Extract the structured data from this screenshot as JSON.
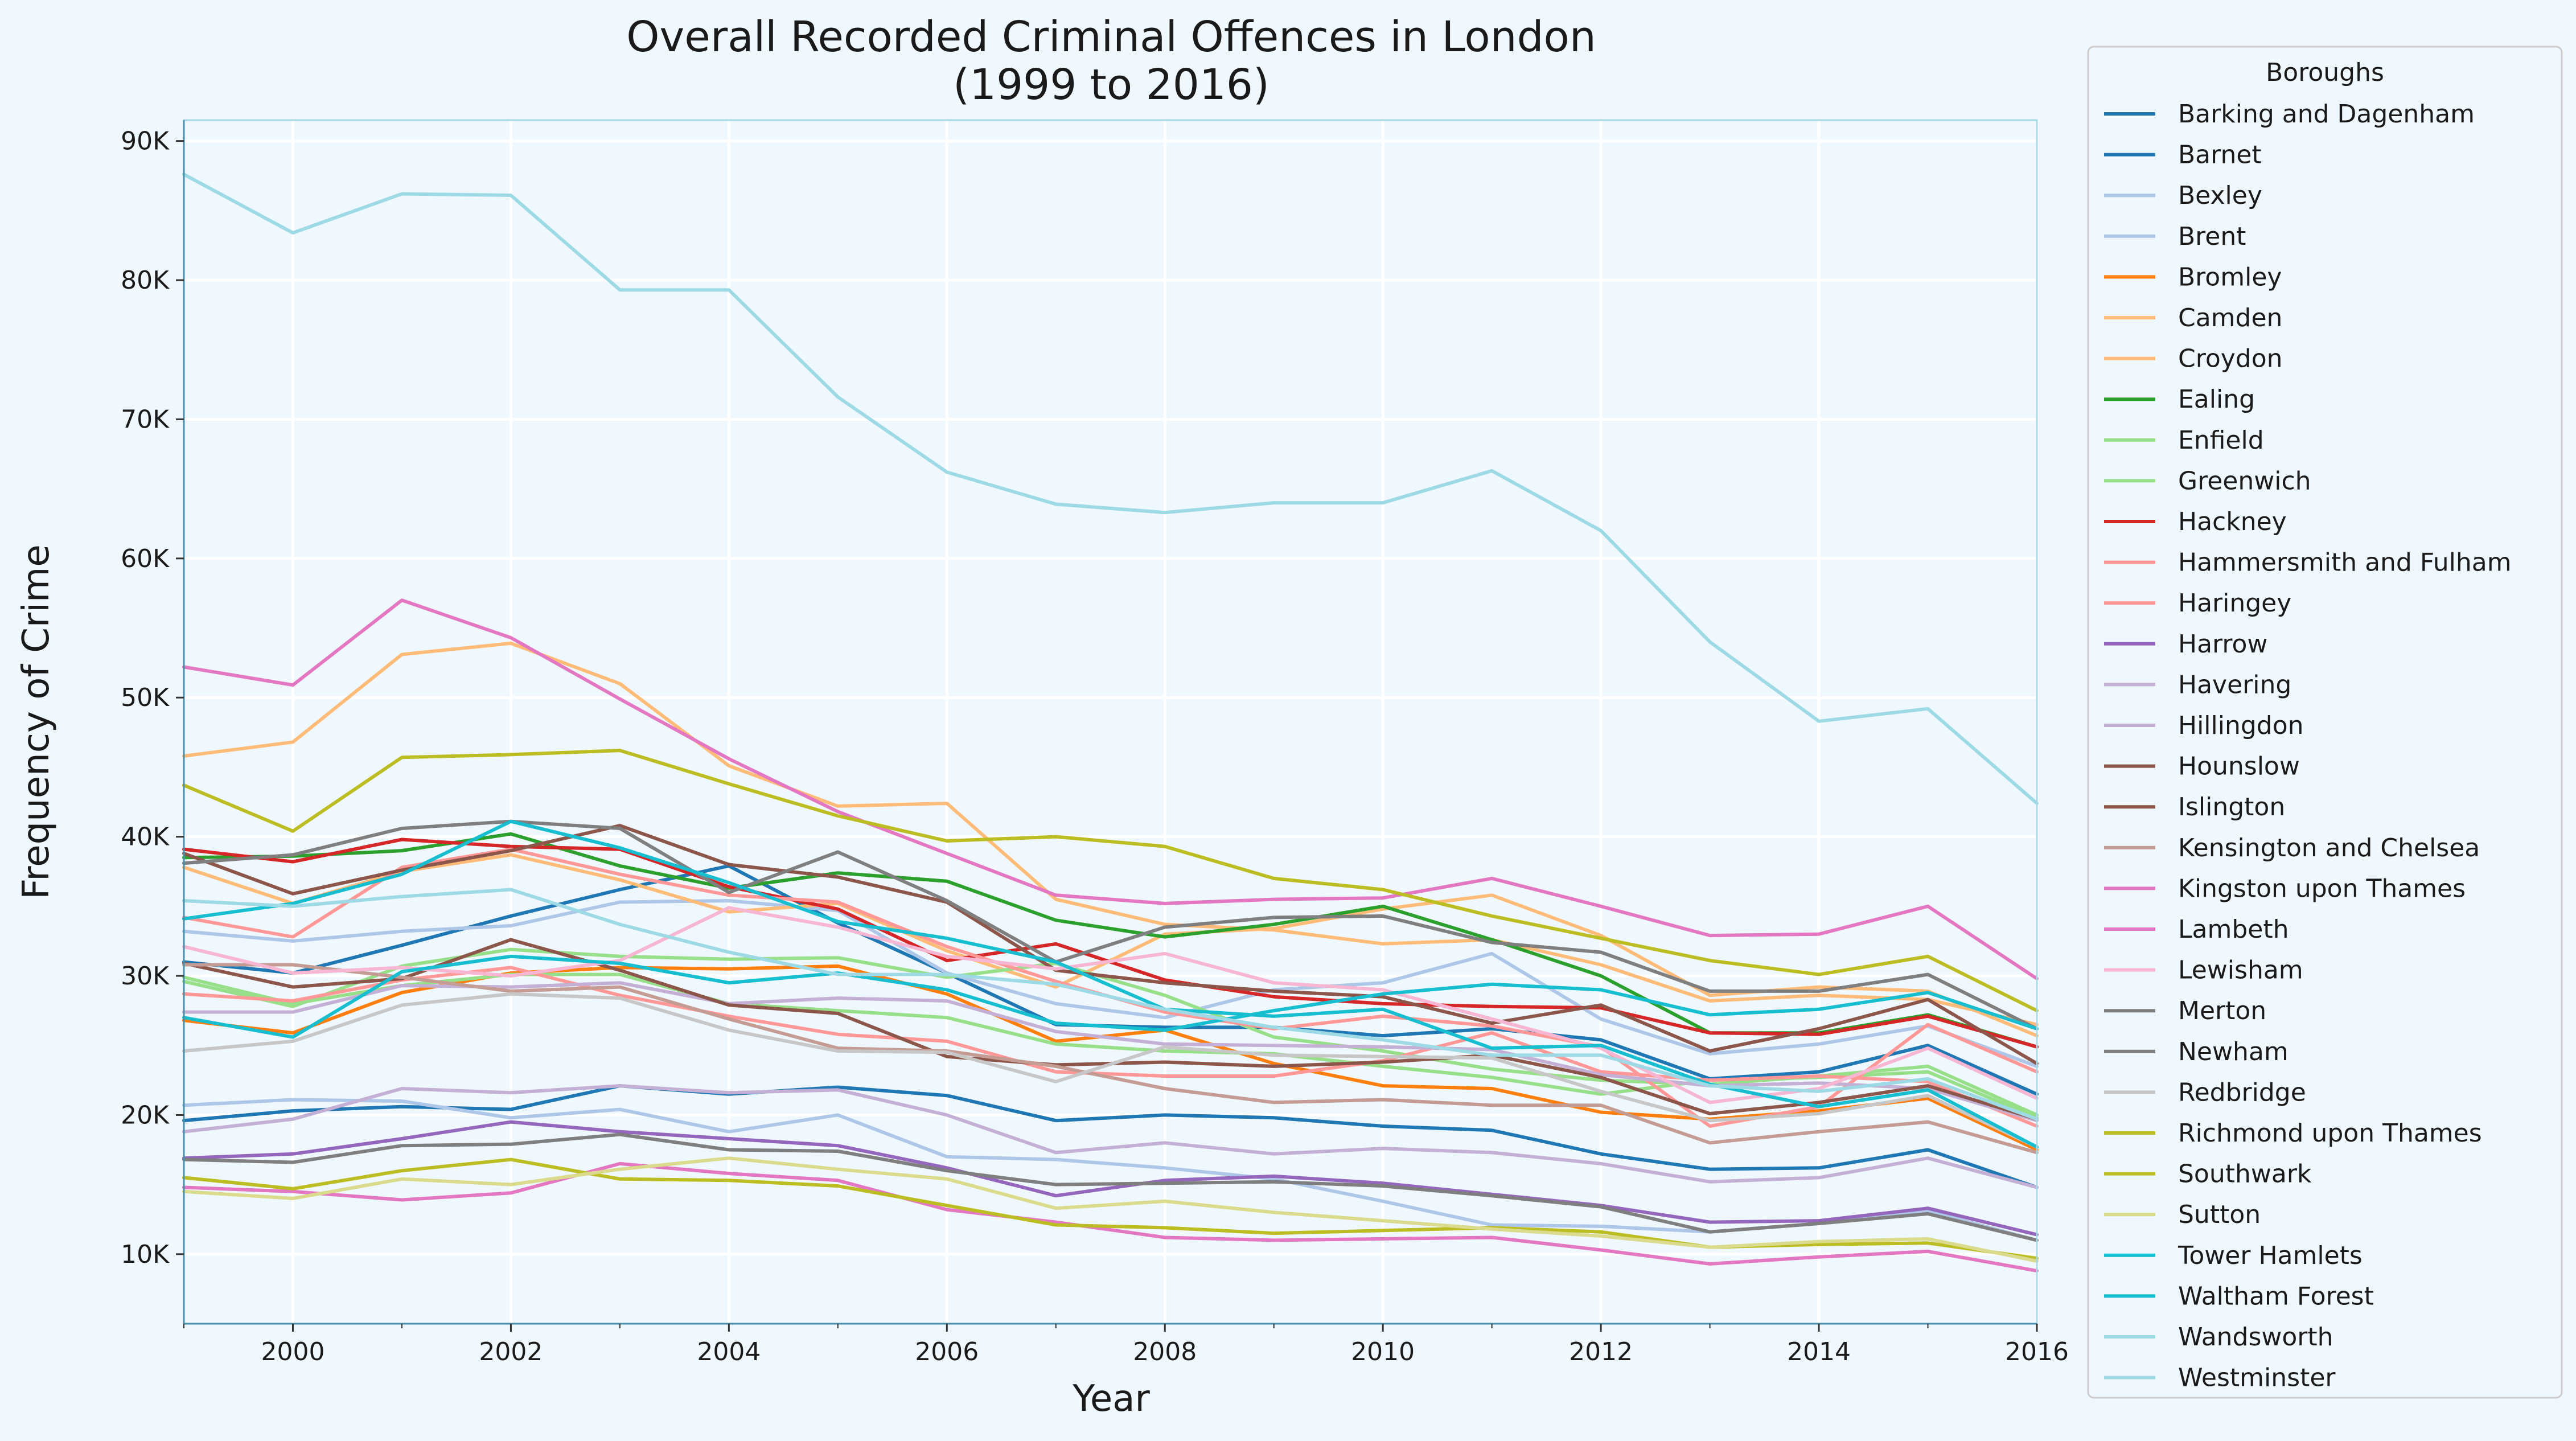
{
  "chart_data": {
    "type": "line",
    "title_lines": [
      "Overall Recorded Criminal Offences in London",
      "(1999 to 2016)"
    ],
    "xlabel": "Year",
    "ylabel": "Frequency of Crime",
    "xlim": [
      1999,
      2016
    ],
    "ylim": [
      5000,
      91500
    ],
    "x_ticks": [
      2000,
      2002,
      2004,
      2006,
      2008,
      2010,
      2012,
      2014,
      2016
    ],
    "x_tick_labels": [
      "2000",
      "2002",
      "2004",
      "2006",
      "2008",
      "2010",
      "2012",
      "2014",
      "2016"
    ],
    "y_ticks": [
      10000,
      20000,
      30000,
      40000,
      50000,
      60000,
      70000,
      80000,
      90000
    ],
    "y_tick_labels": [
      "10K",
      "20K",
      "30K",
      "40K",
      "50K",
      "60K",
      "70K",
      "80K",
      "90K"
    ],
    "grid": true,
    "legend_title": "Boroughs",
    "legend_position": "outside-right",
    "x": [
      1999,
      2000,
      2001,
      2002,
      2003,
      2004,
      2005,
      2006,
      2007,
      2008,
      2009,
      2010,
      2011,
      2012,
      2013,
      2014,
      2015,
      2016
    ],
    "series": [
      {
        "name": "Barking and Dagenham",
        "color": "#1f77b4",
        "values": [
          19600,
          20300,
          20600,
          20400,
          22100,
          21500,
          22000,
          21400,
          19600,
          20000,
          19800,
          19200,
          18900,
          17200,
          16100,
          16200,
          17500,
          14800
        ]
      },
      {
        "name": "Barnet",
        "color": "#1f77b4",
        "values": [
          31000,
          30200,
          32200,
          34300,
          36200,
          37900,
          33800,
          30200,
          26500,
          26300,
          26300,
          25700,
          26200,
          25400,
          22600,
          23100,
          25000,
          21500
        ]
      },
      {
        "name": "Bexley",
        "color": "#aec7e8",
        "values": [
          20700,
          21100,
          21000,
          19800,
          20400,
          18800,
          20000,
          17000,
          16800,
          16200,
          15400,
          13800,
          12100,
          12000,
          11600,
          12200,
          13100,
          11000
        ]
      },
      {
        "name": "Brent",
        "color": "#aec7e8",
        "values": [
          33200,
          32500,
          33200,
          33600,
          35300,
          35400,
          34700,
          30200,
          28000,
          27000,
          29000,
          29500,
          31600,
          26900,
          24400,
          25100,
          26400,
          23500
        ]
      },
      {
        "name": "Bromley",
        "color": "#ff7f0e",
        "values": [
          26800,
          25900,
          28800,
          30200,
          30600,
          30500,
          30700,
          28700,
          25300,
          26100,
          23700,
          22100,
          21900,
          20200,
          19700,
          20300,
          21200,
          17500
        ]
      },
      {
        "name": "Camden",
        "color": "#ffbb78",
        "values": [
          45800,
          46800,
          53100,
          53900,
          51000,
          45100,
          42200,
          42400,
          35500,
          33700,
          33300,
          32300,
          32600,
          30800,
          28200,
          28600,
          28300,
          26500
        ]
      },
      {
        "name": "Croydon",
        "color": "#ffbb78",
        "values": [
          37800,
          35200,
          37500,
          38700,
          36900,
          34600,
          35200,
          31800,
          29200,
          33000,
          33400,
          34800,
          35800,
          32900,
          28600,
          29200,
          28900,
          25700
        ]
      },
      {
        "name": "Ealing",
        "color": "#2ca02c",
        "values": [
          38500,
          38600,
          39000,
          40200,
          37900,
          36300,
          37400,
          36800,
          34000,
          32800,
          33700,
          35000,
          32600,
          30000,
          25900,
          25900,
          27200,
          24900
        ]
      },
      {
        "name": "Enfield",
        "color": "#98df8a",
        "values": [
          29900,
          28000,
          29300,
          30100,
          30100,
          28000,
          27500,
          27000,
          25100,
          24600,
          24400,
          23500,
          22700,
          21500,
          22500,
          22700,
          23100,
          19800
        ]
      },
      {
        "name": "Greenwich",
        "color": "#98df8a",
        "values": [
          29600,
          27800,
          30700,
          31900,
          31400,
          31200,
          31300,
          29900,
          30900,
          28600,
          25600,
          24600,
          23300,
          22500,
          22200,
          22800,
          23500,
          20000
        ]
      },
      {
        "name": "Hackney",
        "color": "#d62728",
        "values": [
          39100,
          38200,
          39800,
          39300,
          39100,
          36400,
          34800,
          31100,
          32300,
          29700,
          28500,
          28000,
          27800,
          27700,
          25900,
          25800,
          27100,
          24900
        ]
      },
      {
        "name": "Hammersmith and Fulham",
        "color": "#ff9896",
        "values": [
          28700,
          28200,
          29700,
          30600,
          28600,
          27100,
          25800,
          25300,
          23100,
          22800,
          22800,
          23900,
          25900,
          23100,
          22500,
          22800,
          22400,
          19200
        ]
      },
      {
        "name": "Haringey",
        "color": "#ff9896",
        "values": [
          34200,
          32800,
          37800,
          39100,
          37300,
          35800,
          35300,
          32100,
          29600,
          27400,
          26200,
          27100,
          26400,
          24900,
          19200,
          20600,
          26500,
          23100
        ]
      },
      {
        "name": "Harrow",
        "color": "#9467bd",
        "values": [
          16900,
          17200,
          18300,
          19500,
          18800,
          18300,
          17800,
          16200,
          14200,
          15300,
          15600,
          15100,
          14300,
          13500,
          12300,
          12400,
          13300,
          11400
        ]
      },
      {
        "name": "Havering",
        "color": "#c5b0d5",
        "values": [
          18800,
          19700,
          21900,
          21600,
          22100,
          21600,
          21800,
          20000,
          17300,
          18000,
          17200,
          17600,
          17300,
          16500,
          15200,
          15500,
          16900,
          14800
        ]
      },
      {
        "name": "Hillingdon",
        "color": "#c5b0d5",
        "values": [
          27400,
          27400,
          29300,
          29200,
          29500,
          28000,
          28400,
          28200,
          26000,
          25100,
          25000,
          24900,
          24700,
          22900,
          22100,
          22300,
          21900,
          19600
        ]
      },
      {
        "name": "Hounslow",
        "color": "#8c564b",
        "values": [
          30900,
          29200,
          29800,
          32600,
          30400,
          27900,
          27300,
          24200,
          23600,
          23800,
          23500,
          23800,
          24300,
          22700,
          20100,
          20900,
          22100,
          19700
        ]
      },
      {
        "name": "Islington",
        "color": "#8c564b",
        "values": [
          38800,
          35900,
          37600,
          39000,
          40800,
          38000,
          37100,
          35300,
          30400,
          29500,
          28900,
          28500,
          26600,
          27900,
          24600,
          26200,
          28300,
          23700
        ]
      },
      {
        "name": "Kensington and Chelsea",
        "color": "#c49c94",
        "values": [
          30800,
          30800,
          29900,
          28900,
          29200,
          26900,
          24800,
          24600,
          23500,
          21900,
          20900,
          21100,
          20700,
          20700,
          18000,
          18800,
          19500,
          17300
        ]
      },
      {
        "name": "Kingston upon Thames",
        "color": "#e377c2",
        "values": [
          14800,
          14500,
          13900,
          14400,
          16500,
          15800,
          15300,
          13200,
          12300,
          11200,
          11000,
          11100,
          11200,
          10300,
          9300,
          9800,
          10200,
          8800
        ]
      },
      {
        "name": "Lambeth",
        "color": "#e377c2",
        "values": [
          52200,
          50900,
          57000,
          54300,
          49900,
          45600,
          41800,
          38800,
          35800,
          35200,
          35500,
          35600,
          37000,
          35000,
          32900,
          33000,
          35000,
          29800
        ]
      },
      {
        "name": "Lewisham",
        "color": "#f7b6d2",
        "values": [
          32100,
          30200,
          30600,
          30000,
          31100,
          34900,
          33500,
          31400,
          30500,
          31600,
          29500,
          29000,
          26900,
          24800,
          20900,
          21900,
          24800,
          21200
        ]
      },
      {
        "name": "Merton",
        "color": "#7f7f7f",
        "values": [
          16800,
          16600,
          17800,
          17900,
          18600,
          17500,
          17400,
          16000,
          15000,
          15100,
          15200,
          14900,
          14200,
          13400,
          11600,
          12200,
          12900,
          11000
        ]
      },
      {
        "name": "Newham",
        "color": "#7f7f7f",
        "values": [
          38100,
          38700,
          40600,
          41100,
          40600,
          36000,
          38900,
          35400,
          31000,
          33500,
          34200,
          34300,
          32400,
          31700,
          28900,
          28900,
          30100,
          26200
        ]
      },
      {
        "name": "Redbridge",
        "color": "#c7c7c7",
        "values": [
          24600,
          25300,
          27900,
          28700,
          28400,
          26100,
          24600,
          24500,
          22400,
          24900,
          24300,
          24200,
          24100,
          21700,
          19600,
          20100,
          21400,
          17700
        ]
      },
      {
        "name": "Richmond upon Thames",
        "color": "#bcbd22",
        "values": [
          15500,
          14700,
          16000,
          16800,
          15400,
          15300,
          14900,
          13500,
          12100,
          11900,
          11500,
          11700,
          11900,
          11600,
          10500,
          10700,
          10800,
          9700
        ]
      },
      {
        "name": "Southwark",
        "color": "#bcbd22",
        "values": [
          43700,
          40400,
          45700,
          45900,
          46200,
          43800,
          41500,
          39700,
          40000,
          39300,
          37000,
          36200,
          34300,
          32700,
          31100,
          30100,
          31400,
          27500
        ]
      },
      {
        "name": "Sutton",
        "color": "#dbdb8d",
        "values": [
          14500,
          14000,
          15400,
          15000,
          16100,
          16900,
          16100,
          15400,
          13300,
          13800,
          13000,
          12400,
          11800,
          11300,
          10500,
          10900,
          11100,
          9500
        ]
      },
      {
        "name": "Tower Hamlets",
        "color": "#17becf",
        "values": [
          34100,
          35200,
          37300,
          41100,
          39200,
          36700,
          33900,
          32700,
          31000,
          27600,
          27100,
          27600,
          24800,
          25000,
          22200,
          20600,
          21800,
          17700
        ]
      },
      {
        "name": "Waltham Forest",
        "color": "#17becf",
        "values": [
          27000,
          25600,
          30300,
          31400,
          30900,
          29500,
          30200,
          29000,
          26600,
          26100,
          27500,
          28700,
          29400,
          29000,
          27200,
          27600,
          28800,
          26200
        ]
      },
      {
        "name": "Wandsworth",
        "color": "#9edae5",
        "values": [
          35400,
          35000,
          35700,
          36200,
          33700,
          31700,
          30100,
          30100,
          29400,
          27600,
          26300,
          25400,
          24300,
          24300,
          22100,
          21700,
          22600,
          19700
        ]
      },
      {
        "name": "Westminster",
        "color": "#9edae5",
        "values": [
          87600,
          83400,
          86200,
          86100,
          79300,
          79300,
          71600,
          66200,
          63900,
          63300,
          64000,
          64000,
          66300,
          62000,
          54000,
          48300,
          49200,
          42400
        ]
      }
    ]
  }
}
